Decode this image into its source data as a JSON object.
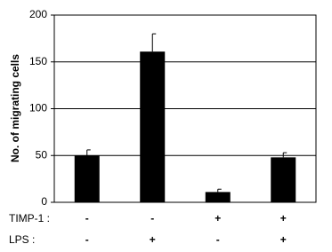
{
  "chart_data": {
    "type": "bar",
    "y_label": "No. of migrating cells",
    "category_rows": [
      {
        "name": "TIMP-1 :",
        "labels": [
          "-",
          "-",
          "+",
          "+"
        ]
      },
      {
        "name": "LPS :",
        "labels": [
          "-",
          "+",
          "-",
          "+"
        ]
      }
    ],
    "values": [
      50,
      161,
      11,
      48
    ],
    "errors": [
      6,
      19,
      3,
      5
    ],
    "color": "#000000",
    "ylim": [
      0,
      200
    ],
    "yticks": [
      0,
      50,
      100,
      150,
      200
    ],
    "grid": true
  }
}
